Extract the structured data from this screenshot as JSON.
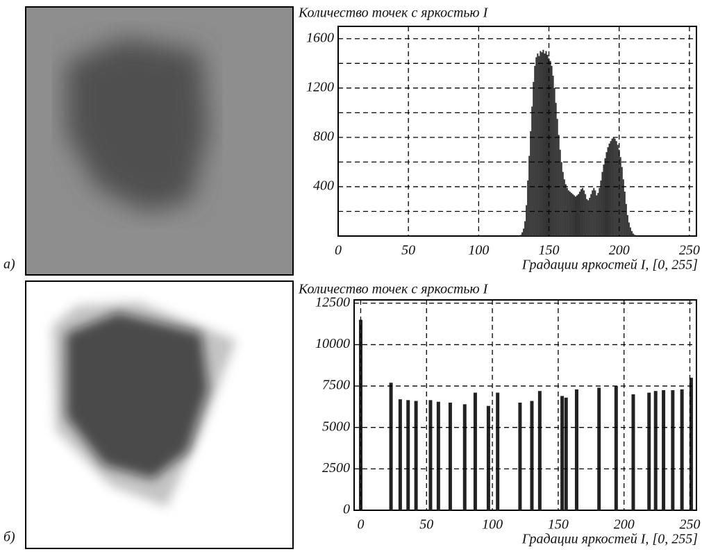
{
  "chart_data": [
    {
      "type": "bar",
      "panel_label": "а)",
      "ylabel": "Количество точек с яркостью I",
      "xlabel": "Градации яркостей I, [0, 255]",
      "color": "#333333",
      "xlim": [
        0,
        255
      ],
      "ylim": [
        0,
        1700
      ],
      "xticks": [
        0,
        50,
        100,
        150,
        200,
        250
      ],
      "yticks": [
        400,
        800,
        1200,
        1600
      ],
      "minor_yticks": [
        200,
        600,
        1000,
        1400
      ],
      "grid": true,
      "x": [
        130,
        131,
        132,
        133,
        134,
        135,
        136,
        137,
        138,
        139,
        140,
        141,
        142,
        143,
        144,
        145,
        146,
        147,
        148,
        149,
        150,
        151,
        152,
        153,
        154,
        155,
        156,
        157,
        158,
        159,
        160,
        161,
        162,
        163,
        164,
        165,
        166,
        167,
        168,
        169,
        170,
        171,
        172,
        173,
        174,
        175,
        176,
        177,
        178,
        179,
        180,
        181,
        182,
        183,
        184,
        185,
        186,
        187,
        188,
        189,
        190,
        191,
        192,
        193,
        194,
        195,
        196,
        197,
        198,
        199,
        200,
        201,
        202,
        203,
        204,
        205,
        206,
        207,
        208,
        209,
        210,
        211
      ],
      "values": [
        10,
        30,
        60,
        120,
        250,
        450,
        650,
        850,
        1050,
        1250,
        1380,
        1450,
        1480,
        1460,
        1500,
        1490,
        1510,
        1480,
        1500,
        1470,
        1440,
        1420,
        1380,
        1300,
        1200,
        1080,
        950,
        820,
        700,
        600,
        520,
        460,
        420,
        390,
        370,
        360,
        350,
        340,
        330,
        320,
        330,
        340,
        360,
        380,
        390,
        370,
        340,
        300,
        290,
        310,
        340,
        370,
        390,
        370,
        330,
        350,
        390,
        450,
        520,
        580,
        630,
        680,
        720,
        750,
        770,
        790,
        800,
        790,
        770,
        740,
        700,
        640,
        560,
        460,
        360,
        260,
        170,
        110,
        70,
        40,
        20,
        10
      ]
    },
    {
      "type": "bar",
      "panel_label": "б)",
      "ylabel": "Количество точек с яркостью I",
      "xlabel": "Градации яркостей I, [0, 255]",
      "color": "#222222",
      "xlim": [
        -5,
        255
      ],
      "ylim": [
        0,
        12700
      ],
      "xticks": [
        0,
        50,
        100,
        150,
        200,
        250
      ],
      "yticks": [
        0,
        2500,
        5000,
        7500,
        10000,
        12500
      ],
      "grid": true,
      "x": [
        0,
        23,
        30,
        36,
        42,
        53,
        59,
        68,
        79,
        87,
        97,
        104,
        121,
        130,
        136,
        153,
        156,
        164,
        181,
        194,
        207,
        219,
        224,
        230,
        237,
        244,
        251
      ],
      "values": [
        11500,
        7700,
        6700,
        6650,
        6600,
        6650,
        6550,
        6500,
        6400,
        7100,
        6300,
        7100,
        6500,
        6600,
        7200,
        6900,
        6800,
        7300,
        7400,
        7500,
        7000,
        7100,
        7200,
        7250,
        7250,
        7300,
        8000
      ]
    }
  ]
}
